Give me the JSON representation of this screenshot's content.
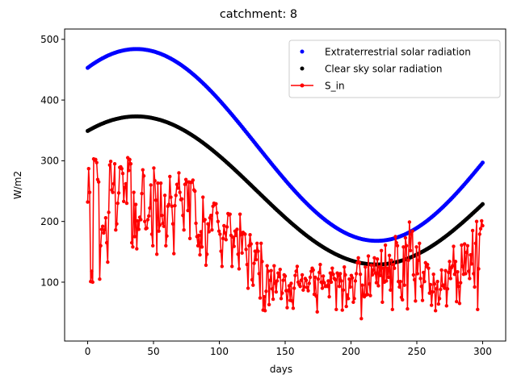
{
  "chart_data": {
    "type": "line",
    "title": "catchment: 8",
    "xlabel": "days",
    "ylabel": "W/m2",
    "xlim": [
      -17.5,
      317.5
    ],
    "ylim": [
      3,
      517
    ],
    "xticks": [
      0,
      50,
      100,
      150,
      200,
      250,
      300
    ],
    "yticks": [
      100,
      200,
      300,
      400,
      500
    ],
    "legend_position": "upper right",
    "grid": false,
    "series": [
      {
        "name": "Extraterrestrial solar radiation",
        "style": "markers",
        "color": "#0000ff",
        "model": "sinusoid",
        "mean": 326,
        "amplitude": 158,
        "phase_day": 37,
        "period_days": 365,
        "x_range": [
          0,
          300
        ]
      },
      {
        "name": "Clear sky solar radiation",
        "style": "markers",
        "color": "#000000",
        "model": "sinusoid",
        "mean": 251,
        "amplitude": 122,
        "phase_day": 37,
        "period_days": 365,
        "x_range": [
          0,
          300
        ]
      },
      {
        "name": "S_in",
        "style": "line-markers",
        "color": "#ff0000",
        "x_range": [
          0,
          300
        ],
        "values": [
          232,
          287,
          248,
          101,
          118,
          100,
          303,
          301,
          302,
          297,
          269,
          265,
          105,
          160,
          187,
          192,
          181,
          186,
          206,
          165,
          133,
          215,
          293,
          299,
          252,
          248,
          262,
          295,
          186,
          196,
          230,
          247,
          289,
          290,
          287,
          279,
          233,
          256,
          262,
          230,
          305,
          284,
          302,
          295,
          165,
          158,
          248,
          175,
          228,
          155,
          201,
          187,
          207,
          203,
          246,
          285,
          275,
          200,
          188,
          189,
          203,
          209,
          222,
          260,
          179,
          160,
          288,
          267,
          235,
          146,
          263,
          184,
          194,
          263,
          210,
          197,
          192,
          243,
          160,
          176,
          225,
          228,
          274,
          240,
          225,
          196,
          147,
          226,
          243,
          261,
          255,
          280,
          248,
          236,
          237,
          210,
          186,
          261,
          269,
          265,
          218,
          265,
          172,
          264,
          265,
          268,
          252,
          250,
          197,
          175,
          160,
          177,
          145,
          183,
          158,
          240,
          201,
          203,
          128,
          146,
          196,
          183,
          206,
          210,
          186,
          225,
          230,
          228,
          229,
          214,
          200,
          184,
          179,
          151,
          126,
          172,
          193,
          181,
          170,
          191,
          213,
          211,
          212,
          177,
          126,
          174,
          159,
          184,
          177,
          187,
          146,
          122,
          212,
          178,
          148,
          182,
          180,
          179,
          154,
          129,
          90,
          160,
          178,
          163,
          104,
          95,
          131,
          151,
          137,
          164,
          151,
          114,
          74,
          164,
          134,
          54,
          76,
          53,
          85,
          127,
          118,
          63,
          103,
          119,
          89,
          72,
          127,
          98,
          84,
          102,
          115,
          109,
          121,
          73,
          82,
          103,
          112,
          110,
          86,
          58,
          86,
          94,
          70,
          98,
          69,
          57,
          90,
          111,
          118,
          126,
          100,
          96,
          93,
          103,
          112,
          87,
          92,
          106,
          103,
          91,
          86,
          98,
          108,
          118,
          123,
          120,
          80,
          108,
          77,
          51,
          105,
          116,
          129,
          100,
          90,
          110,
          99,
          93,
          94,
          93,
          102,
          76,
          115,
          100,
          123,
          113,
          106,
          104,
          55,
          115,
          111,
          93,
          114,
          102,
          54,
          87,
          125,
          112,
          60,
          79,
          73,
          105,
          92,
          111,
          107,
          67,
          73,
          102,
          114,
          132,
          140,
          132,
          113,
          40,
          95,
          79,
          76,
          125,
          79,
          80,
          143,
          97,
          78,
          128,
          112,
          120,
          140,
          115,
          99,
          138,
          94,
          125,
          111,
          152,
          67,
          123,
          100,
          161,
          102,
          123,
          108,
          144,
          87,
          136,
          55,
          129,
          123,
          175,
          165,
          160,
          101,
          92,
          101,
          75,
          71,
          158,
          95,
          173,
          160,
          56,
          136,
          199,
          152,
          179,
          184,
          112,
          104,
          69,
          158,
          114,
          136,
          164,
          106,
          93,
          70,
          116,
          101,
          132,
          126,
          129,
          123,
          82,
          96,
          62,
          84,
          113,
          97,
          53,
          89,
          101,
          64,
          73,
          88,
          120,
          94,
          95,
          90,
          119,
          61,
          89,
          116,
          134,
          106,
          124,
          127,
          159,
          113,
          134,
          68,
          117,
          93,
          65,
          99,
          161,
          126,
          113,
          163,
          114,
          149,
          160,
          118,
          106,
          145,
          130,
          185,
          114,
          92,
          164,
          200,
          55,
          122,
          179,
          188,
          201,
          193
        ]
      }
    ]
  }
}
